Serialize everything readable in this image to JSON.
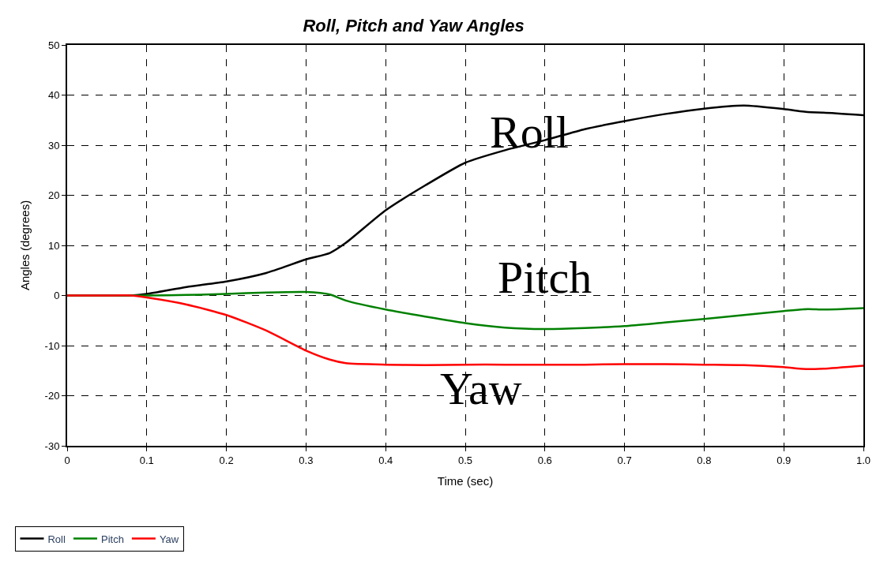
{
  "chart_data": {
    "type": "line",
    "title": "Roll, Pitch and Yaw Angles",
    "xlabel": "Time (sec)",
    "ylabel": "Angles (degrees)",
    "x": [
      0,
      0.05,
      0.08,
      0.1,
      0.15,
      0.2,
      0.25,
      0.3,
      0.33,
      0.35,
      0.4,
      0.45,
      0.5,
      0.55,
      0.6,
      0.65,
      0.7,
      0.75,
      0.8,
      0.85,
      0.9,
      0.93,
      0.95,
      1.0
    ],
    "series": [
      {
        "name": "Roll",
        "color": "#000000",
        "values": [
          0,
          0,
          0,
          0.3,
          1.7,
          2.8,
          4.5,
          7.2,
          8.5,
          10.5,
          17,
          22,
          26.5,
          29,
          31,
          33.2,
          34.8,
          36.2,
          37.3,
          37.9,
          37.2,
          36.6,
          36.5,
          36
        ]
      },
      {
        "name": "Pitch",
        "color": "#008000",
        "values": [
          0,
          0,
          0,
          0,
          0.1,
          0.3,
          0.6,
          0.7,
          0.2,
          -1,
          -2.8,
          -4.2,
          -5.5,
          -6.4,
          -6.7,
          -6.5,
          -6.1,
          -5.4,
          -4.7,
          -3.9,
          -3.1,
          -2.7,
          -2.8,
          -2.5
        ]
      },
      {
        "name": "Yaw",
        "color": "#ff0000",
        "values": [
          0,
          0,
          0,
          -0.4,
          -1.8,
          -3.9,
          -7,
          -11,
          -12.8,
          -13.5,
          -13.8,
          -13.9,
          -13.8,
          -13.8,
          -13.8,
          -13.8,
          -13.7,
          -13.7,
          -13.8,
          -13.9,
          -14.3,
          -14.7,
          -14.6,
          -14
        ]
      }
    ],
    "annotations": [
      "Roll",
      "Pitch",
      "Yaw"
    ],
    "xlim": [
      0,
      1
    ],
    "xticks": [
      0,
      0.1,
      0.2,
      0.3,
      0.4,
      0.5,
      0.6,
      0.7,
      0.8,
      0.9,
      {
        "value": 1,
        "label": "1.0"
      }
    ],
    "ylim": [
      -30,
      50
    ],
    "yticks": [
      -30,
      -20,
      -10,
      0,
      10,
      20,
      30,
      40,
      50
    ],
    "grid": true,
    "legend": "bottom left",
    "line_style": "solid",
    "marker": "none"
  }
}
